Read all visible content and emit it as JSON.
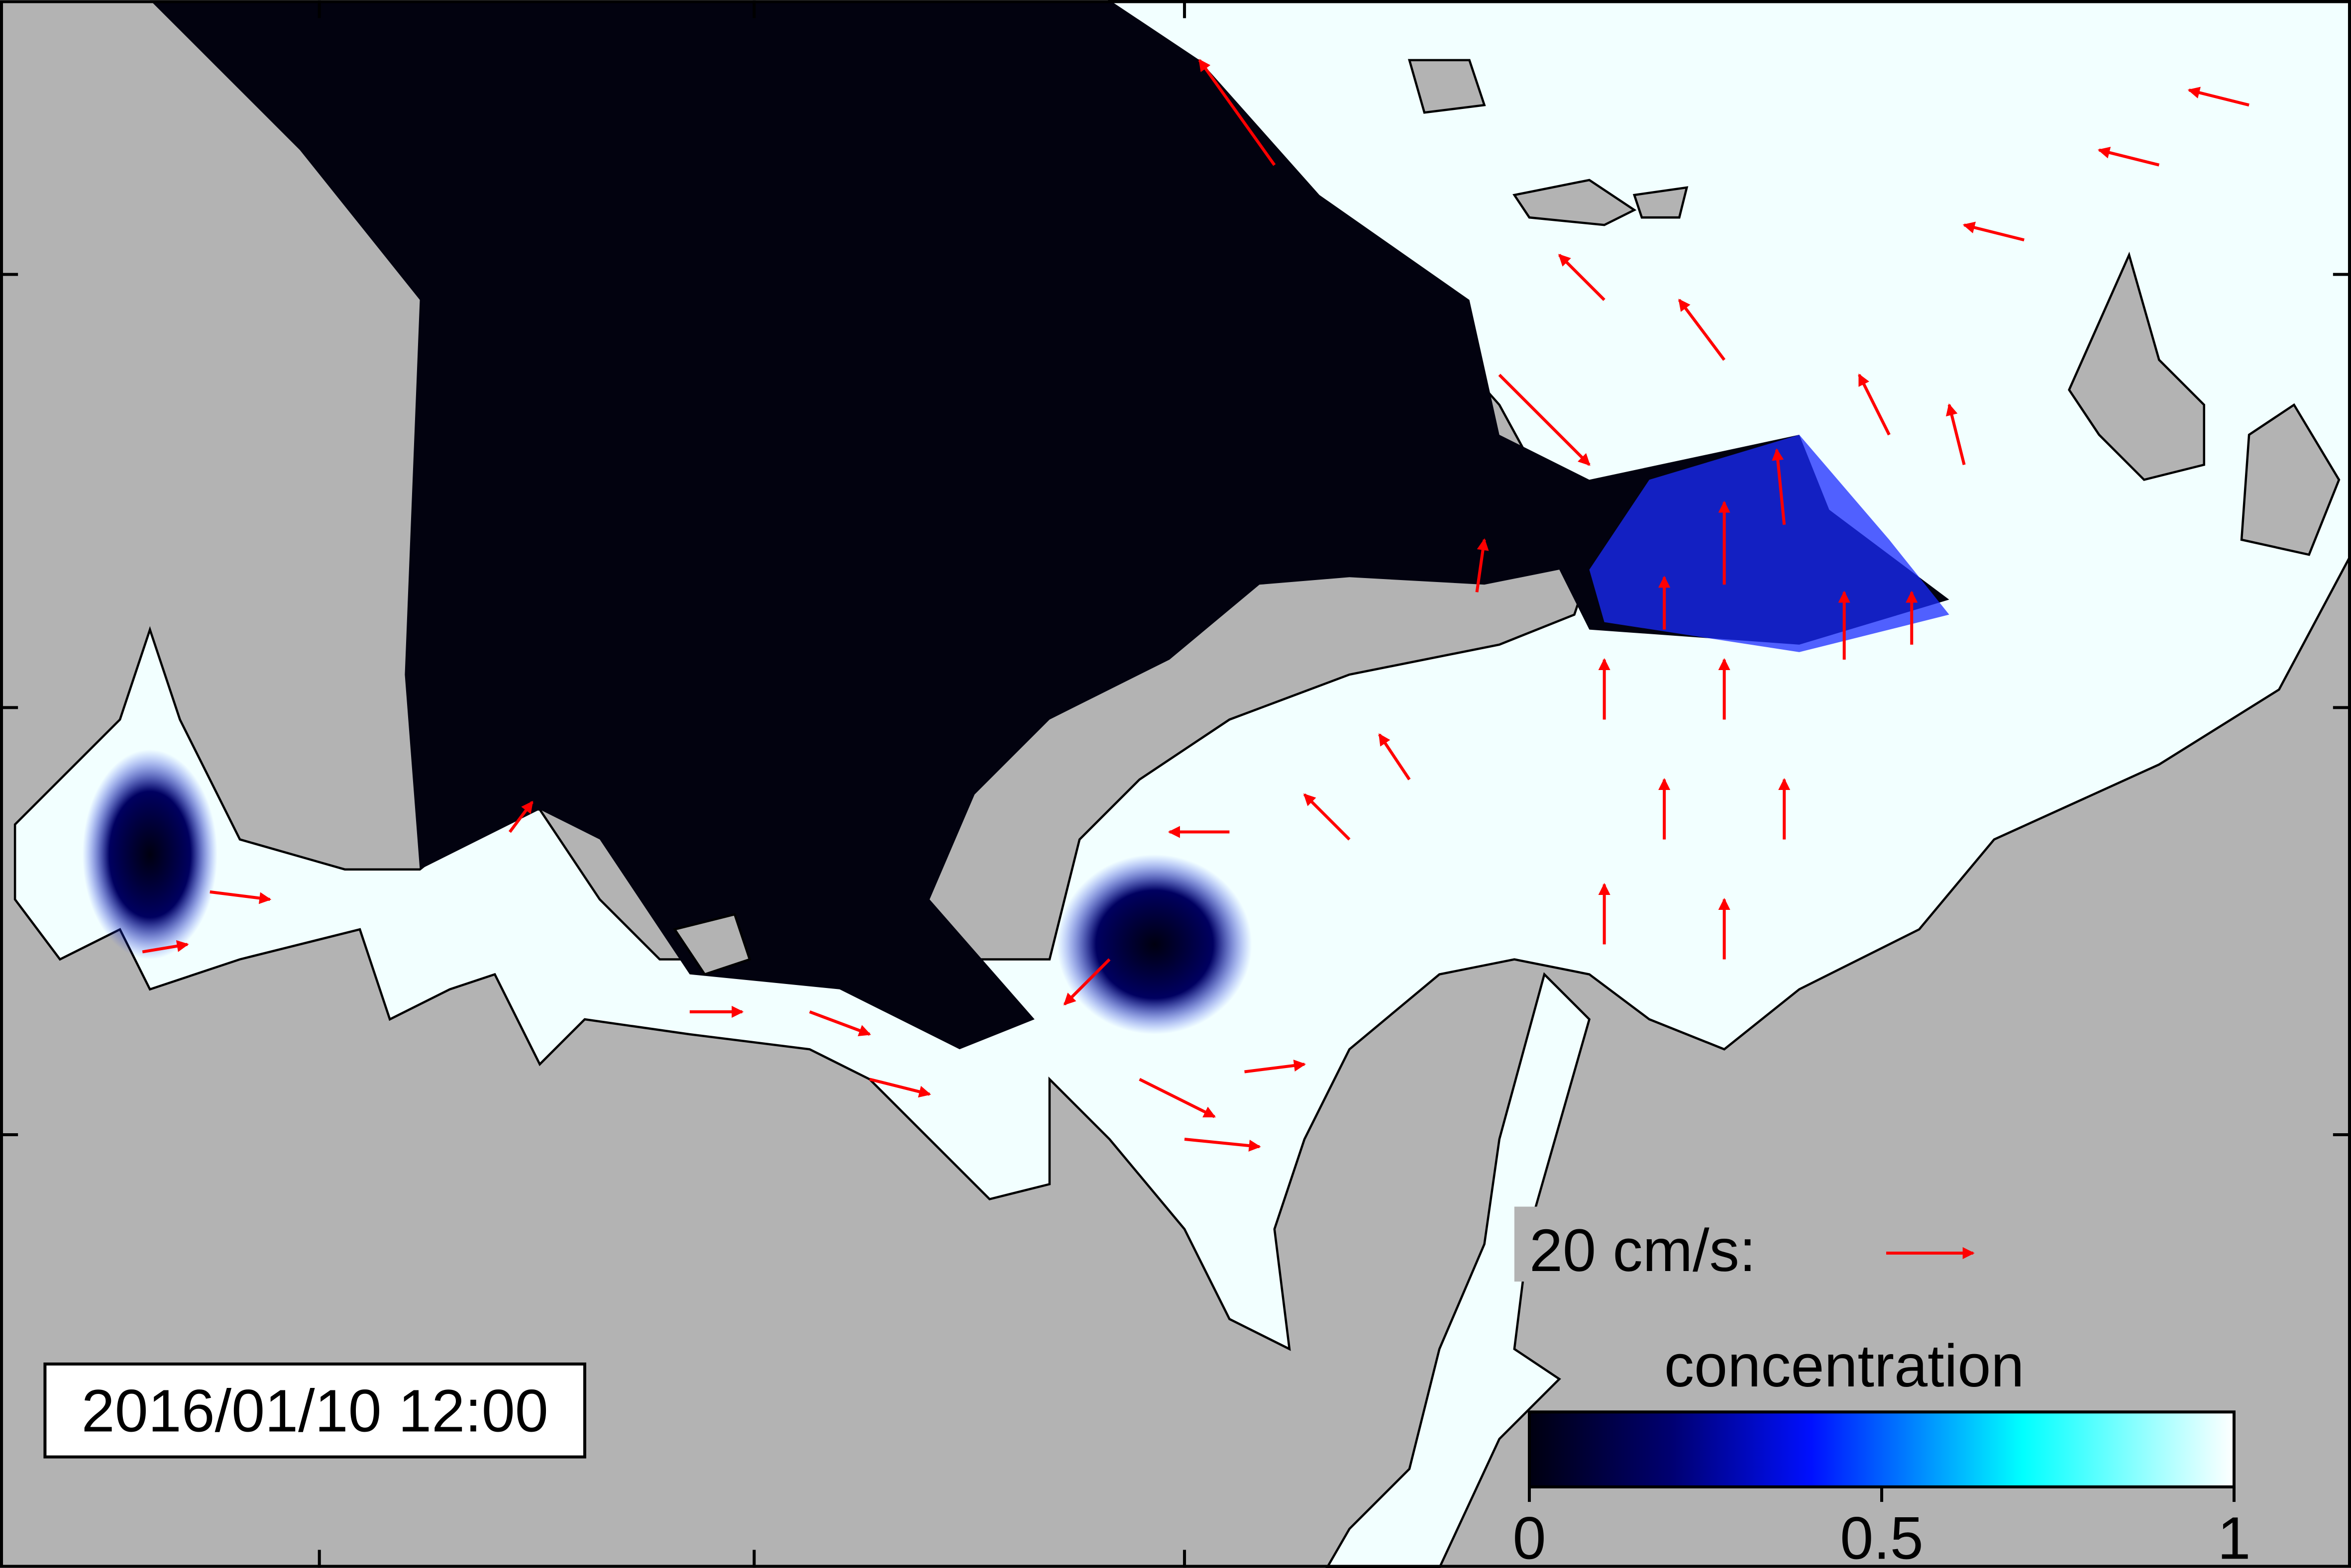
{
  "timestamp": "2016/01/10 12:00",
  "vector_legend": {
    "label": "20 cm/s:"
  },
  "colorbar": {
    "title": "concentration",
    "lim": [
      0,
      1
    ],
    "ticks": [
      0,
      0.5,
      1
    ]
  }
}
